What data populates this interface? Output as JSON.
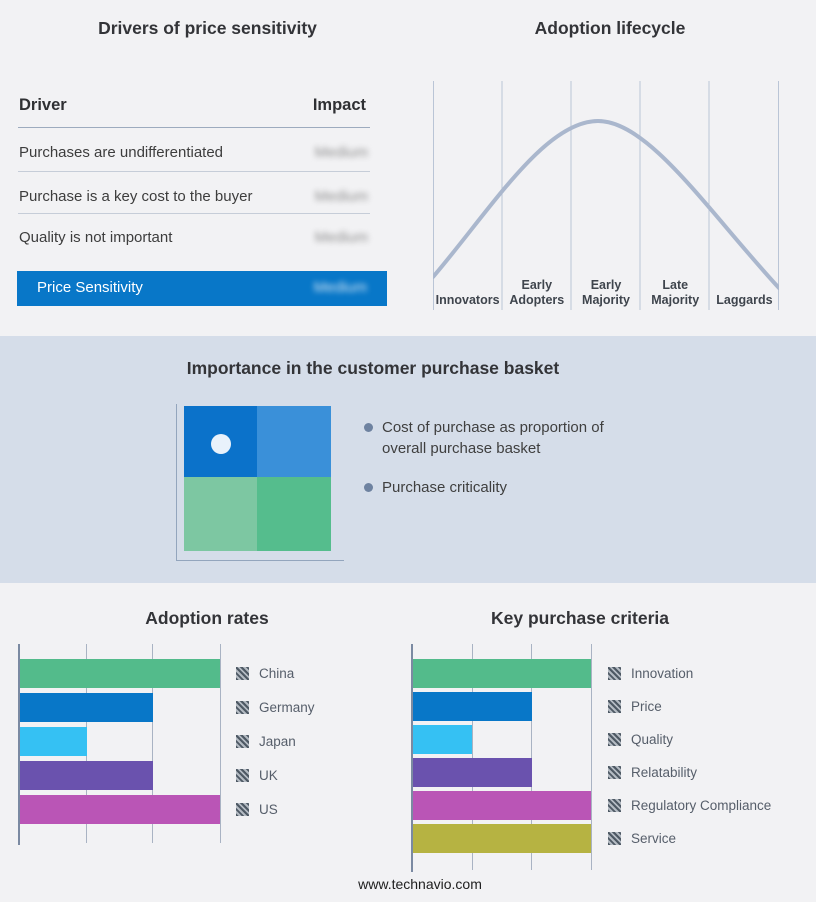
{
  "footer": {
    "url": "www.technavio.com"
  },
  "colors": {
    "background": "#f2f2f4",
    "band": "#d5dde9",
    "accent_blue": "#0877c8",
    "green": "#53bb8b",
    "cyan": "#35c1f3",
    "purple": "#6a52ae",
    "magenta": "#ba55b6",
    "olive": "#b6b342",
    "curve": "#aab7cd",
    "quadrant_top_left": "#0b72ca",
    "quadrant_top_right": "#3a90d9",
    "quadrant_bottom_left": "#7dc7a2",
    "quadrant_bottom_right": "#55bd8d"
  },
  "drivers_panel": {
    "title": "Drivers of price sensitivity",
    "col_driver": "Driver",
    "col_impact": "Impact",
    "rows": [
      {
        "driver": "Purchases are undifferentiated",
        "impact": "Medium"
      },
      {
        "driver": "Purchase is a key cost to the buyer",
        "impact": "Medium"
      },
      {
        "driver": "Quality is not important",
        "impact": "Medium"
      }
    ],
    "highlight_row": {
      "label": "Price Sensitivity",
      "impact": "Medium"
    }
  },
  "lifecycle_panel": {
    "title": "Adoption lifecycle",
    "stages": [
      "Innovators",
      "Early Adopters",
      "Early Majority",
      "Late Majority",
      "Laggards"
    ]
  },
  "basket_panel": {
    "title": "Importance in the customer purchase basket",
    "bullets": [
      "Cost of purchase as proportion of overall purchase basket",
      "Purchase criticality"
    ]
  },
  "chart_data": [
    {
      "type": "line",
      "title": "Adoption lifecycle",
      "x_categories": [
        "Innovators",
        "Early Adopters",
        "Early Majority",
        "Late Majority",
        "Laggards"
      ],
      "shape": "bell curve rising from Innovators, peaking in Early Majority, falling through Laggards",
      "peak_stage": "Early Majority",
      "grid": "vertical stage separator lines",
      "line_color": "#aab7cd"
    },
    {
      "type": "bar",
      "orientation": "horizontal",
      "title": "Adoption rates",
      "categories": [
        "China",
        "Germany",
        "Japan",
        "UK",
        "US"
      ],
      "values": [
        3,
        2,
        1,
        2,
        3
      ],
      "xlim": [
        0,
        3
      ],
      "gridlines": [
        1,
        2,
        3
      ],
      "colors": [
        "#53bb8b",
        "#0877c8",
        "#35c1f3",
        "#6a52ae",
        "#ba55b6"
      ],
      "legend_position": "right"
    },
    {
      "type": "bar",
      "orientation": "horizontal",
      "title": "Key purchase criteria",
      "categories": [
        "Innovation",
        "Price",
        "Quality",
        "Relatability",
        "Regulatory Compliance",
        "Service"
      ],
      "values": [
        3,
        2,
        1,
        2,
        3,
        3
      ],
      "xlim": [
        0,
        3
      ],
      "gridlines": [
        1,
        2,
        3
      ],
      "colors": [
        "#53bb8b",
        "#0877c8",
        "#35c1f3",
        "#6a52ae",
        "#ba55b6",
        "#b6b342"
      ],
      "legend_position": "right"
    }
  ]
}
